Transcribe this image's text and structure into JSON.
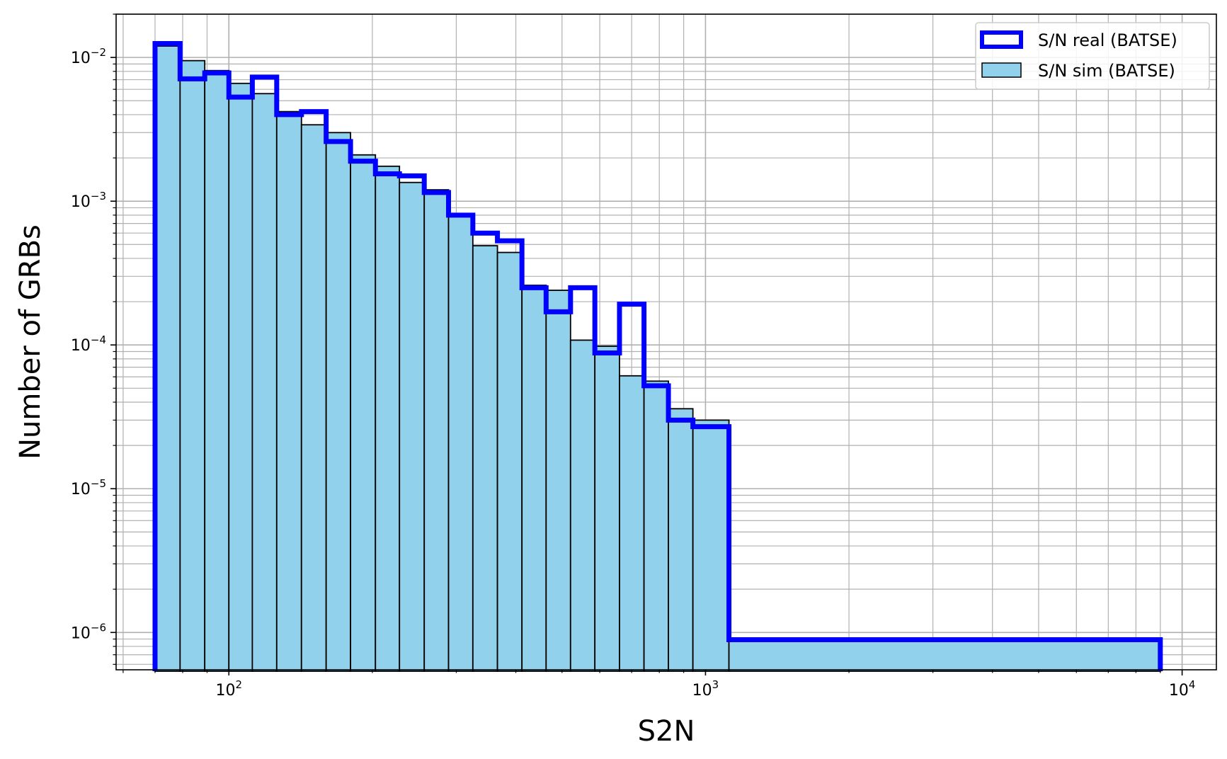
{
  "chart_data": {
    "type": "bar",
    "xlabel": "S2N",
    "ylabel": "Number of GRBs",
    "xscale": "log",
    "yscale": "log",
    "xlim": [
      58,
      11800
    ],
    "ylim": [
      5.5e-07,
      0.02
    ],
    "grid": true,
    "grid_minor": true,
    "legend_position": "top-right",
    "x_ticks": [
      {
        "value": 100,
        "base": "10",
        "exp": "2"
      },
      {
        "value": 1000,
        "base": "10",
        "exp": "3"
      },
      {
        "value": 10000,
        "base": "10",
        "exp": "4"
      }
    ],
    "y_ticks": [
      {
        "value": 0.01,
        "base": "10",
        "exp": "−2"
      },
      {
        "value": 0.001,
        "base": "10",
        "exp": "−3"
      },
      {
        "value": 0.0001,
        "base": "10",
        "exp": "−4"
      },
      {
        "value": 1e-05,
        "base": "10",
        "exp": "−5"
      },
      {
        "value": 1e-06,
        "base": "10",
        "exp": "−6"
      }
    ],
    "bin_edges": [
      70,
      79,
      89,
      100,
      112,
      126,
      142,
      160,
      180,
      203,
      228,
      257,
      289,
      325,
      366,
      412,
      463,
      521,
      586,
      660,
      743,
      836,
      941,
      1120
    ],
    "series": [
      {
        "name": "S/N sim (BATSE)",
        "style": "filled-bar",
        "color": "#91d1ec",
        "edge_color": "#000000",
        "values": [
          0.012,
          0.0095,
          0.0081,
          0.0066,
          0.0056,
          0.0042,
          0.0034,
          0.003,
          0.0021,
          0.00175,
          0.00135,
          0.0012,
          0.00078,
          0.00049,
          0.00044,
          0.00026,
          0.00024,
          0.000108,
          9.8e-05,
          6.1e-05,
          5.6e-05,
          3.6e-05,
          3e-05
        ],
        "last_bin": {
          "x_start": 1120,
          "x_end": 9000,
          "value": 8.9e-07
        }
      },
      {
        "name": "S/N real (BATSE)",
        "style": "step",
        "color": "#0000ff",
        "values": [
          0.0125,
          0.0071,
          0.0078,
          0.0053,
          0.0073,
          0.004,
          0.0042,
          0.0026,
          0.0019,
          0.00155,
          0.0015,
          0.00115,
          0.0008,
          0.0006,
          0.00053,
          0.00025,
          0.00017,
          0.00025,
          8.8e-05,
          0.000192,
          5.2e-05,
          3e-05,
          2.7e-05
        ],
        "last_bin": {
          "x_start": 1120,
          "x_end": 9000,
          "value": 8.9e-07
        }
      }
    ]
  }
}
